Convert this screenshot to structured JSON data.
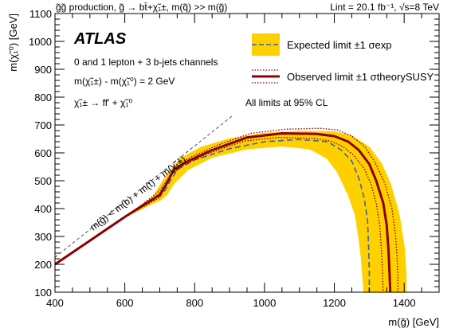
{
  "chart_data": {
    "type": "line",
    "title": "g̃g̃ production, g̃ → bt̄+χ̃₁±, m(q̃) >> m(g̃)",
    "lumi_text": "Lint = 20.1 fb⁻¹, √s=8 TeV",
    "experiment": "ATLAS",
    "xlabel": "m(g̃) [GeV]",
    "ylabel": "m(χ̃₁⁰) [GeV]",
    "xlim": [
      400,
      1500
    ],
    "ylim": [
      100,
      1100
    ],
    "x_ticks": [
      400,
      600,
      800,
      1000,
      1200,
      1400
    ],
    "y_ticks": [
      100,
      200,
      300,
      400,
      500,
      600,
      700,
      800,
      900,
      1000,
      1100
    ],
    "grid": false,
    "legend_position": "top-right",
    "annotations": [
      "0 and 1 lepton + 3 b-jets channels",
      "m(χ̃₁±) - m(χ̃₁⁰) = 2 GeV",
      "χ̃₁± → ff' + χ̃₁⁰"
    ],
    "cl_note": "All limits at 95% CL",
    "diagonal_label": "m(g̃) < m(b) + m(t) + m(χ̃₁±)",
    "kinematic_line": {
      "x": [
        400,
        910
      ],
      "y": [
        225,
        735
      ]
    },
    "colors": {
      "band": "#ffd000",
      "expected": "#3b64a8",
      "observed": "#8b0000",
      "kinematic": "#555555"
    },
    "series": [
      {
        "name": "Expected limit ±1 σexp",
        "role": "expected",
        "x": [
          400,
          600,
          660,
          700,
          715,
          730,
          750,
          800,
          900,
          1000,
          1100,
          1180,
          1220,
          1250,
          1270,
          1285,
          1295,
          1298,
          1300,
          1300
        ],
        "y": [
          200,
          370,
          415,
          445,
          465,
          500,
          540,
          575,
          615,
          640,
          648,
          640,
          610,
          570,
          510,
          440,
          360,
          270,
          180,
          100
        ]
      },
      {
        "name": "Expected band lower edge",
        "role": "band_inner",
        "x": [
          400,
          600,
          650,
          680,
          700,
          720,
          740,
          780,
          850,
          950,
          1050,
          1130,
          1180,
          1210,
          1240,
          1260,
          1270,
          1278,
          1282,
          1285
        ],
        "y": [
          200,
          370,
          400,
          420,
          430,
          450,
          490,
          540,
          585,
          615,
          625,
          615,
          580,
          530,
          450,
          380,
          300,
          220,
          150,
          100
        ]
      },
      {
        "name": "Expected band upper edge",
        "role": "band_outer",
        "x": [
          400,
          600,
          680,
          720,
          760,
          820,
          900,
          1000,
          1100,
          1200,
          1250,
          1300,
          1335,
          1360,
          1385,
          1400,
          1405,
          1405
        ],
        "y": [
          200,
          370,
          440,
          520,
          580,
          620,
          650,
          670,
          677,
          675,
          660,
          620,
          560,
          490,
          380,
          260,
          160,
          100
        ]
      },
      {
        "name": "Observed limit ±1 σtheorySUSY",
        "role": "observed",
        "x": [
          400,
          600,
          650,
          700,
          720,
          740,
          780,
          850,
          950,
          1050,
          1150,
          1200,
          1240,
          1270,
          1300,
          1320,
          1340,
          1350,
          1355,
          1358,
          1360
        ],
        "y": [
          200,
          370,
          410,
          450,
          490,
          540,
          570,
          610,
          655,
          670,
          668,
          660,
          640,
          610,
          560,
          500,
          420,
          340,
          250,
          170,
          100
        ]
      },
      {
        "name": "Observed theory upper",
        "role": "theory_up",
        "x": [
          400,
          600,
          650,
          700,
          725,
          745,
          790,
          860,
          960,
          1060,
          1160,
          1210,
          1250,
          1285,
          1315,
          1345,
          1365,
          1375,
          1380,
          1382,
          1382
        ],
        "y": [
          200,
          370,
          415,
          465,
          510,
          555,
          585,
          625,
          670,
          685,
          688,
          682,
          660,
          625,
          570,
          490,
          400,
          310,
          220,
          150,
          100
        ]
      },
      {
        "name": "Observed theory lower",
        "role": "theory_down",
        "x": [
          400,
          600,
          650,
          700,
          715,
          735,
          770,
          840,
          940,
          1040,
          1140,
          1190,
          1225,
          1255,
          1285,
          1305,
          1320,
          1330,
          1335,
          1338,
          1340
        ],
        "y": [
          200,
          370,
          405,
          440,
          475,
          525,
          558,
          598,
          642,
          655,
          652,
          642,
          622,
          592,
          545,
          488,
          420,
          340,
          250,
          170,
          100
        ]
      }
    ]
  }
}
